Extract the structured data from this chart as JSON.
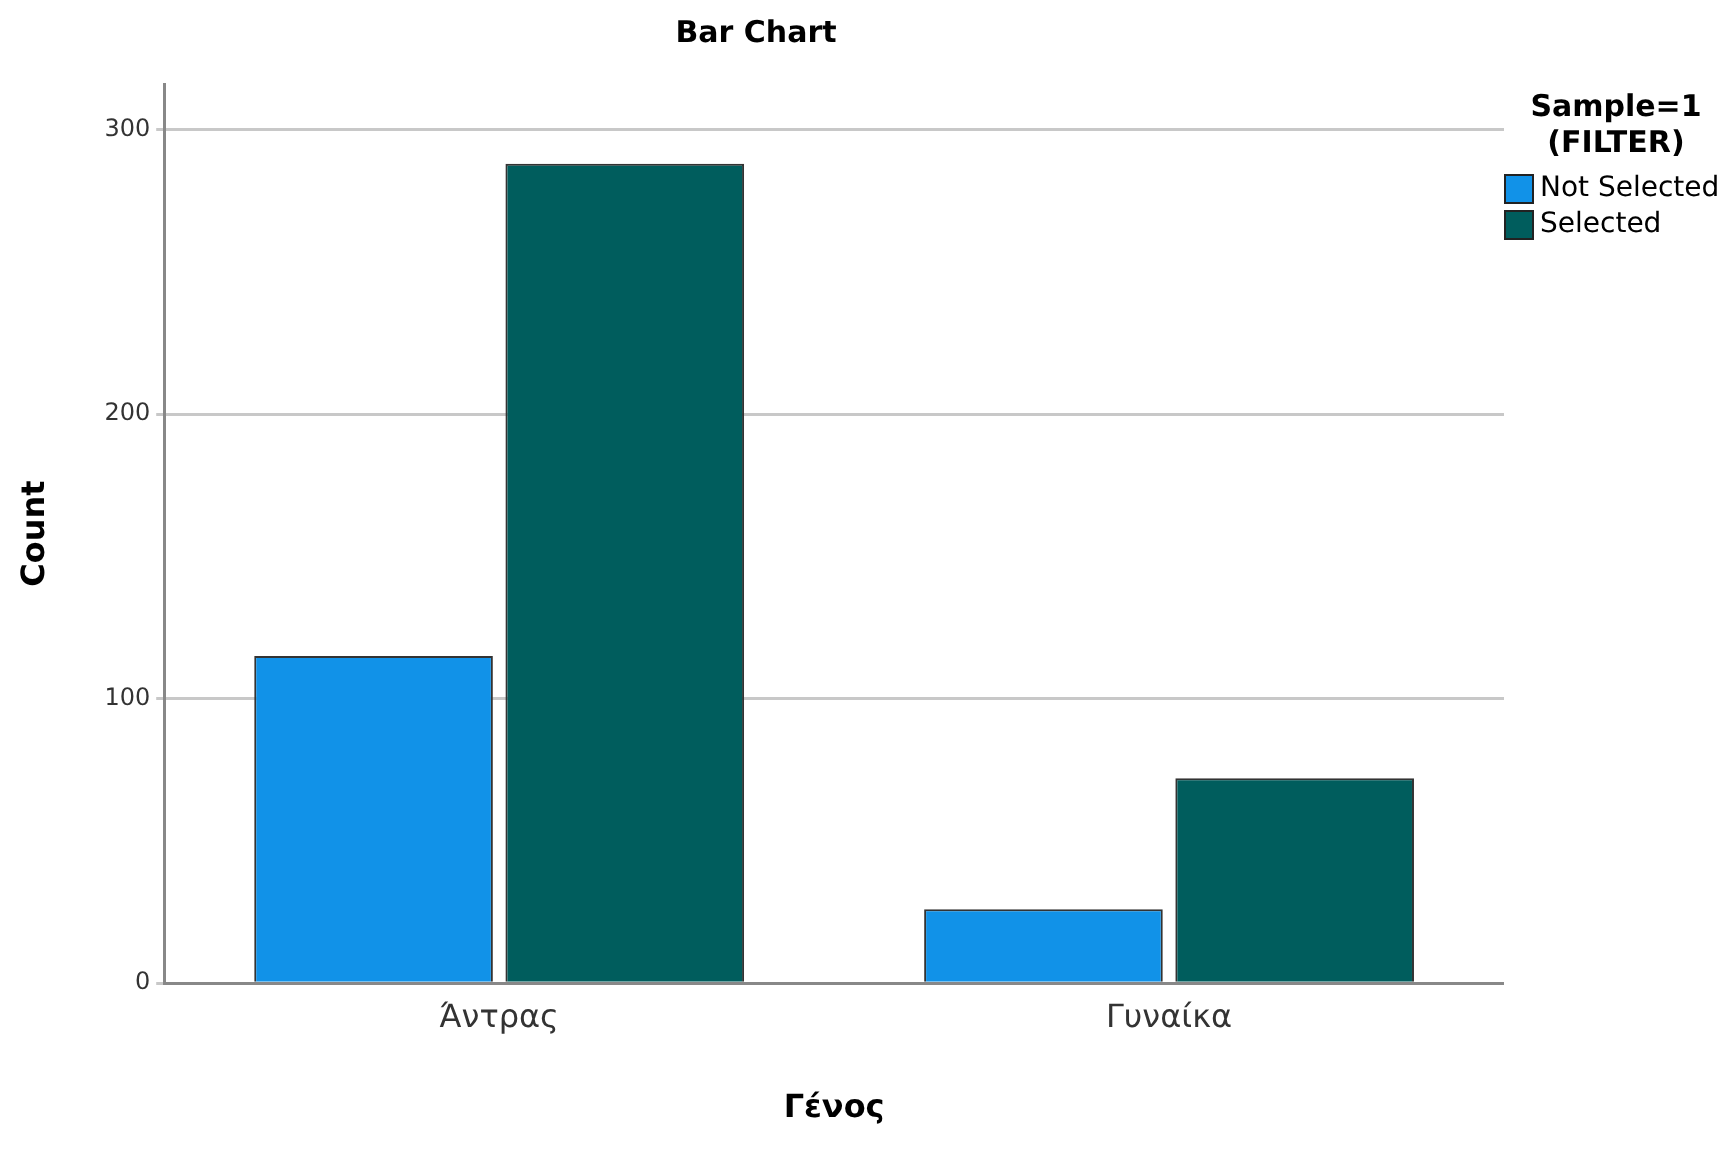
{
  "chart_data": {
    "type": "bar",
    "title": "Bar Chart",
    "xlabel": "Γένος",
    "ylabel": "Count",
    "legend_title": "Sample=1 (FILTER)",
    "categories": [
      "Άντρας",
      "Γυναίκα"
    ],
    "series": [
      {
        "name": "Not Selected",
        "color": "#1192e8",
        "values": [
          115,
          26
        ]
      },
      {
        "name": "Selected",
        "color": "#005d5d",
        "values": [
          288,
          72
        ]
      }
    ],
    "ylim": [
      0,
      316
    ],
    "yticks": [
      0,
      100,
      200,
      300
    ],
    "grid": "y",
    "legend": "right"
  }
}
